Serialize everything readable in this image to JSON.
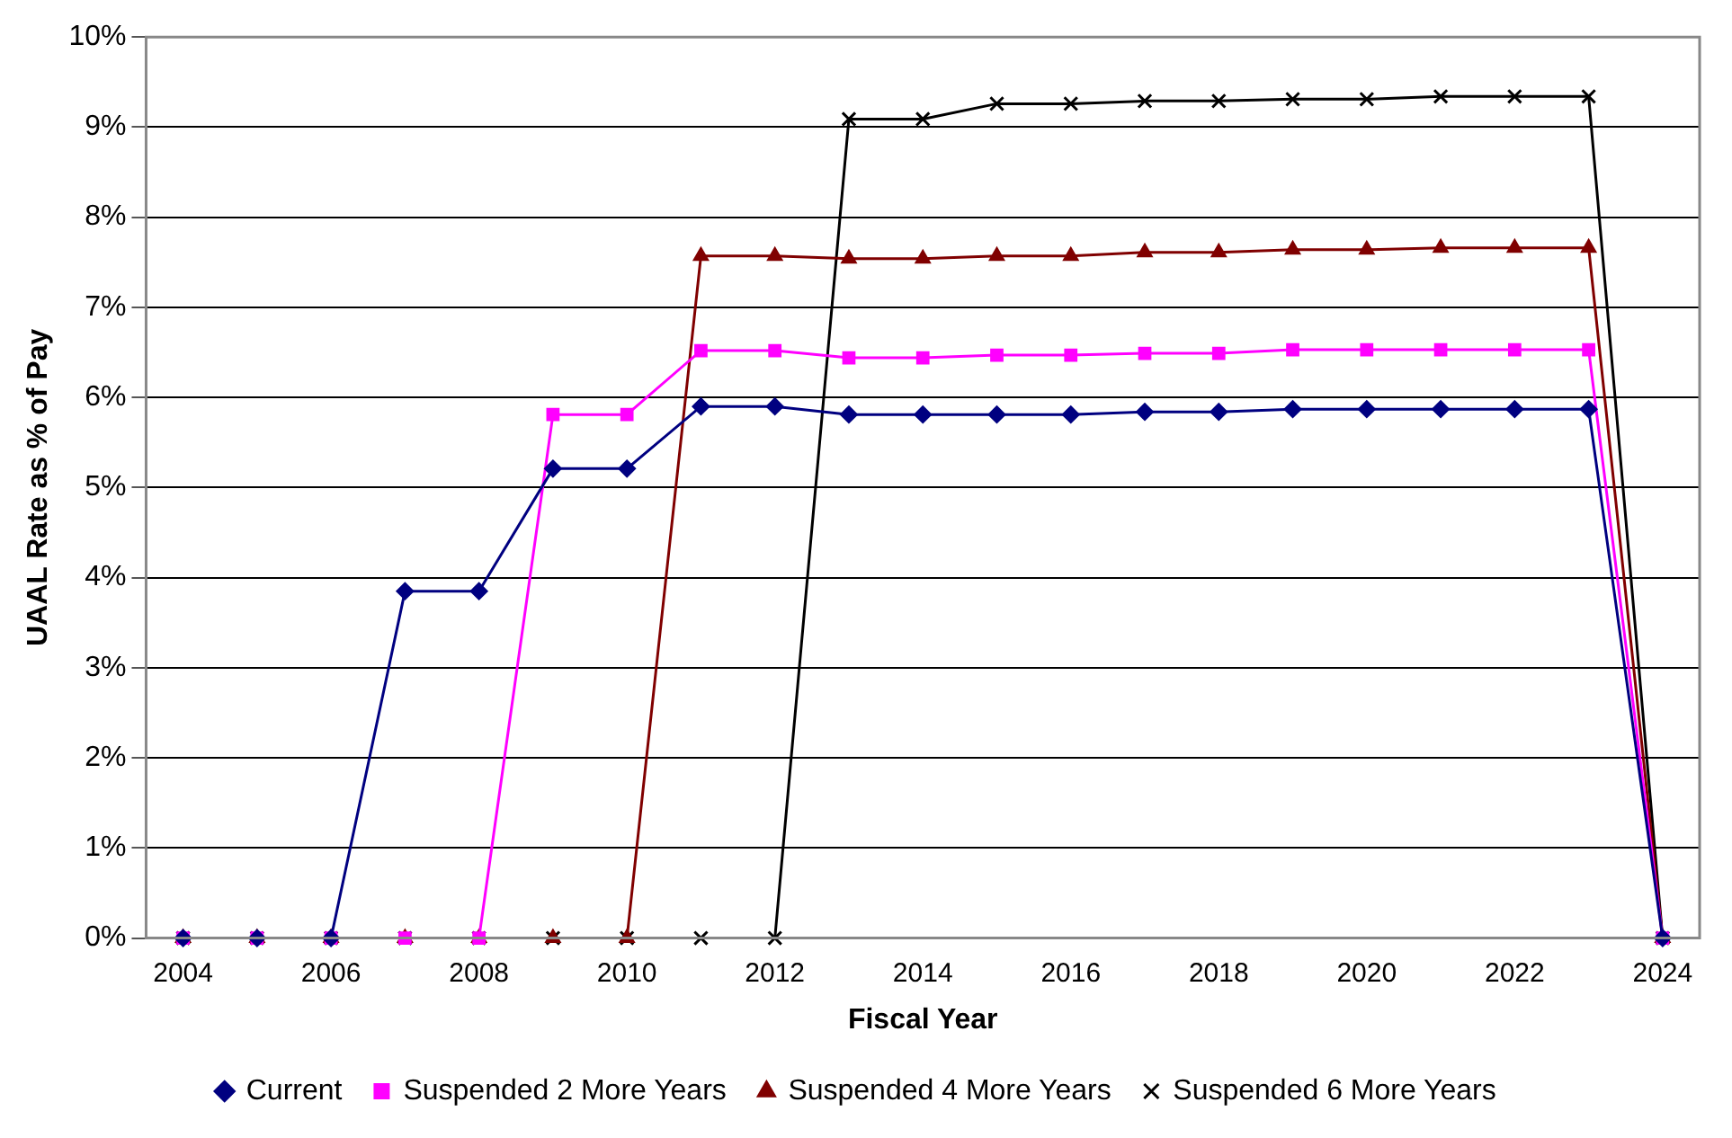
{
  "chart_data": {
    "type": "line",
    "xlabel": "Fiscal Year",
    "ylabel": "UAAL Rate as % of Pay",
    "categories": [
      "2004",
      null,
      "2006",
      null,
      "2008",
      null,
      "2010",
      null,
      "2012",
      null,
      "2014",
      null,
      "2016",
      null,
      "2018",
      null,
      "2020",
      null,
      "2022",
      null,
      "2024"
    ],
    "series": [
      {
        "name": "Current",
        "color": "#000080",
        "marker": "diamond",
        "values": [
          0,
          0,
          0,
          3.85,
          3.85,
          5.21,
          5.21,
          5.9,
          5.9,
          5.81,
          5.81,
          5.81,
          5.81,
          5.84,
          5.84,
          5.87,
          5.87,
          5.87,
          5.87,
          5.87,
          0
        ]
      },
      {
        "name": "Suspended 2 More Years",
        "color": "#ff00ff",
        "marker": "square",
        "values": [
          0,
          0,
          0,
          0,
          0,
          5.81,
          5.81,
          6.52,
          6.52,
          6.44,
          6.44,
          6.47,
          6.47,
          6.49,
          6.49,
          6.53,
          6.53,
          6.53,
          6.53,
          6.53,
          0
        ]
      },
      {
        "name": "Suspended 4 More Years",
        "color": "#800000",
        "marker": "triangle",
        "values": [
          0,
          0,
          0,
          0,
          0,
          0,
          0,
          7.57,
          7.57,
          7.54,
          7.54,
          7.57,
          7.57,
          7.61,
          7.61,
          7.64,
          7.64,
          7.66,
          7.66,
          7.66,
          0
        ]
      },
      {
        "name": "Suspended 6 More Years",
        "color": "#000000",
        "marker": "cross",
        "values": [
          0,
          0,
          0,
          0,
          0,
          0,
          0,
          0,
          0,
          9.09,
          9.09,
          9.26,
          9.26,
          9.29,
          9.29,
          9.31,
          9.31,
          9.34,
          9.34,
          9.34,
          0
        ]
      }
    ],
    "ylim": [
      0,
      10
    ],
    "yticks": [
      {
        "value": 0,
        "label": "0%"
      },
      {
        "value": 1,
        "label": "1%"
      },
      {
        "value": 2,
        "label": "2%"
      },
      {
        "value": 3,
        "label": "3%"
      },
      {
        "value": 4,
        "label": "4%"
      },
      {
        "value": 5,
        "label": "5%"
      },
      {
        "value": 6,
        "label": "6%"
      },
      {
        "value": 7,
        "label": "7%"
      },
      {
        "value": 8,
        "label": "8%"
      },
      {
        "value": 9,
        "label": "9%"
      },
      {
        "value": 10,
        "label": "10%"
      }
    ],
    "grid": "y",
    "legend": "bottom"
  }
}
